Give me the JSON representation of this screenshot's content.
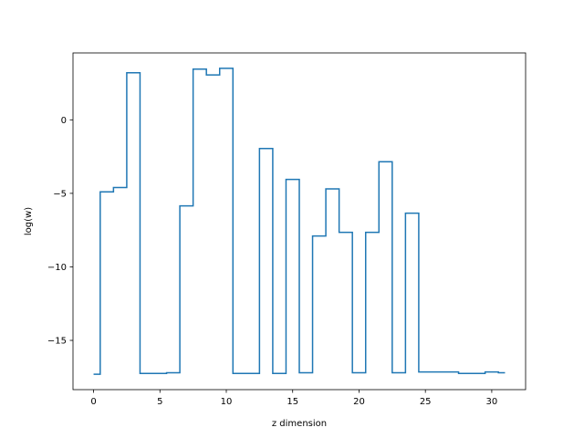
{
  "chart_data": {
    "type": "line",
    "drawstyle": "steps-mid",
    "title": "",
    "xlabel": "z dimension",
    "ylabel": "log(w)",
    "xlim": [
      -1.55,
      32.55
    ],
    "ylim": [
      -18.35,
      4.55
    ],
    "xticks": [
      0,
      5,
      10,
      15,
      20,
      25,
      30
    ],
    "xtick_labels": [
      "0",
      "5",
      "10",
      "15",
      "20",
      "25",
      "30"
    ],
    "yticks": [
      -15,
      -10,
      -5,
      0
    ],
    "ytick_labels": [
      "−15",
      "−10",
      "−5",
      "0"
    ],
    "grid": false,
    "legend": "none",
    "line_color": "#1f77b4",
    "series": [
      {
        "x": [
          0,
          1,
          2,
          3,
          4,
          5,
          6,
          7,
          8,
          9,
          10,
          11,
          12,
          13,
          14,
          15,
          16,
          17,
          18,
          19,
          20,
          21,
          22,
          23,
          24,
          25,
          26,
          27,
          28,
          29,
          30,
          31
        ],
        "values": [
          -17.3,
          -4.9,
          -4.6,
          3.2,
          -17.25,
          -17.25,
          -17.2,
          -5.85,
          3.45,
          3.05,
          3.5,
          -17.25,
          -17.25,
          -1.95,
          -17.25,
          -4.05,
          -17.2,
          -7.9,
          -4.7,
          -7.65,
          -17.2,
          -7.65,
          -2.85,
          -17.2,
          -6.35,
          -17.15,
          -17.15,
          -17.15,
          -17.25,
          -17.25,
          -17.15,
          -17.2
        ]
      }
    ]
  }
}
